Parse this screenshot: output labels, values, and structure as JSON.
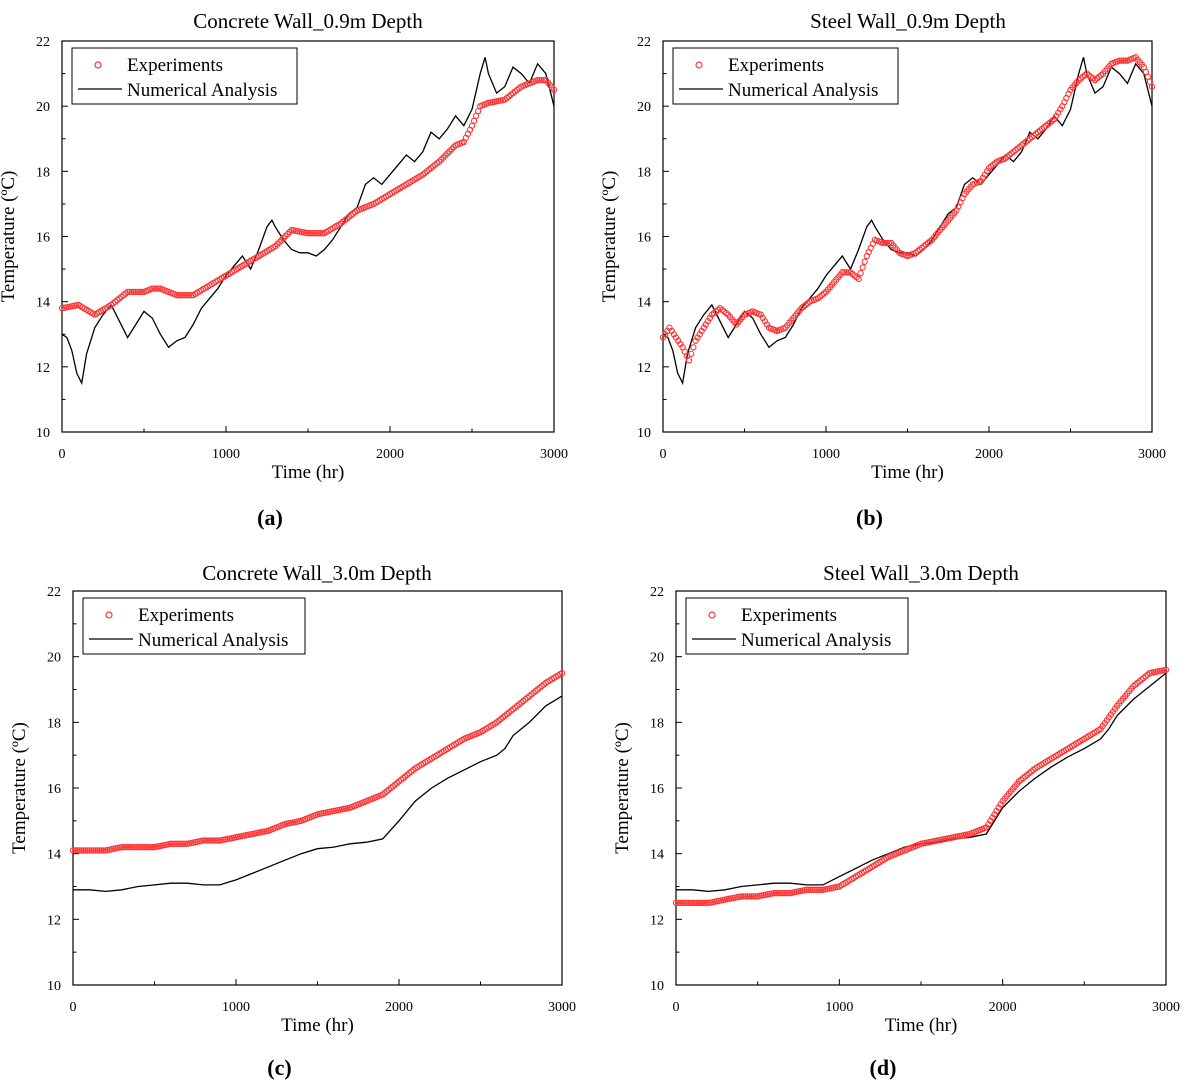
{
  "figure": {
    "panels": [
      {
        "title": "Concrete Wall_0.9m Depth",
        "xlabel": "Time (hr)",
        "ylabel": "Temperature (ºC)",
        "panel_label": "(a)",
        "legend": [
          "Experiments",
          "Numerical Analysis"
        ]
      },
      {
        "title": "Steel Wall_0.9m Depth",
        "xlabel": "Time (hr)",
        "ylabel": "Temperature (ºC)",
        "panel_label": "(b)",
        "legend": [
          "Experiments",
          "Numerical Analysis"
        ]
      },
      {
        "title": "Concrete Wall_3.0m Depth",
        "xlabel": "Time (hr)",
        "ylabel": "Temperature (ºC)",
        "panel_label": "(c)",
        "legend": [
          "Experiments",
          "Numerical Analysis"
        ]
      },
      {
        "title": "Steel Wall_3.0m Depth",
        "xlabel": "Time (hr)",
        "ylabel": "Temperature (ºC)",
        "panel_label": "(d)",
        "legend": [
          "Experiments",
          "Numerical Analysis"
        ]
      }
    ]
  },
  "colors": {
    "experiments": "#ff3333",
    "numerical": "#000000"
  },
  "chart_data": [
    {
      "type": "line",
      "title": "Concrete Wall_0.9m Depth",
      "xlabel": "Time (hr)",
      "ylabel": "Temperature (ºC)",
      "xlim": [
        0,
        3000
      ],
      "ylim": [
        10,
        22
      ],
      "xticks": [
        0,
        1000,
        2000,
        3000
      ],
      "yticks": [
        10,
        12,
        14,
        16,
        18,
        20,
        22
      ],
      "legend_position": "top-left",
      "grid": false,
      "series": [
        {
          "name": "Experiments",
          "marker": "open-circle",
          "x": [
            0,
            100,
            200,
            300,
            400,
            500,
            550,
            600,
            650,
            700,
            800,
            900,
            1000,
            1100,
            1200,
            1300,
            1400,
            1500,
            1600,
            1700,
            1800,
            1900,
            2000,
            2100,
            2200,
            2300,
            2400,
            2450,
            2500,
            2550,
            2600,
            2700,
            2800,
            2900,
            2950,
            3000
          ],
          "y": [
            13.8,
            13.9,
            13.6,
            13.9,
            14.3,
            14.3,
            14.4,
            14.4,
            14.3,
            14.2,
            14.2,
            14.5,
            14.8,
            15.1,
            15.4,
            15.7,
            16.2,
            16.1,
            16.1,
            16.4,
            16.8,
            17.0,
            17.3,
            17.6,
            17.9,
            18.3,
            18.8,
            18.9,
            19.4,
            20.0,
            20.1,
            20.2,
            20.6,
            20.8,
            20.8,
            20.5
          ]
        },
        {
          "name": "Numerical Analysis",
          "marker": "none",
          "x": [
            0,
            30,
            60,
            90,
            120,
            150,
            200,
            250,
            300,
            350,
            400,
            450,
            500,
            550,
            600,
            650,
            700,
            750,
            800,
            850,
            900,
            950,
            1000,
            1050,
            1100,
            1150,
            1200,
            1250,
            1280,
            1300,
            1350,
            1400,
            1450,
            1500,
            1550,
            1600,
            1650,
            1700,
            1750,
            1800,
            1850,
            1900,
            1950,
            2000,
            2050,
            2100,
            2150,
            2200,
            2250,
            2300,
            2350,
            2400,
            2450,
            2500,
            2550,
            2580,
            2600,
            2650,
            2700,
            2750,
            2800,
            2850,
            2900,
            2950,
            3000
          ],
          "y": [
            13.0,
            12.9,
            12.5,
            11.8,
            11.5,
            12.4,
            13.2,
            13.6,
            13.9,
            13.4,
            12.9,
            13.3,
            13.7,
            13.5,
            13.0,
            12.6,
            12.8,
            12.9,
            13.3,
            13.8,
            14.1,
            14.4,
            14.8,
            15.1,
            15.4,
            15.0,
            15.6,
            16.3,
            16.5,
            16.3,
            15.9,
            15.6,
            15.5,
            15.5,
            15.4,
            15.6,
            15.9,
            16.3,
            16.7,
            16.9,
            17.6,
            17.8,
            17.6,
            17.9,
            18.2,
            18.5,
            18.3,
            18.6,
            19.2,
            19.0,
            19.3,
            19.7,
            19.4,
            19.9,
            21.0,
            21.5,
            21.0,
            20.4,
            20.6,
            21.2,
            21.0,
            20.7,
            21.3,
            21.0,
            20.0
          ]
        }
      ]
    },
    {
      "type": "line",
      "title": "Steel Wall_0.9m Depth",
      "xlabel": "Time (hr)",
      "ylabel": "Temperature (ºC)",
      "xlim": [
        0,
        3000
      ],
      "ylim": [
        10,
        22
      ],
      "xticks": [
        0,
        1000,
        2000,
        3000
      ],
      "yticks": [
        10,
        12,
        14,
        16,
        18,
        20,
        22
      ],
      "legend_position": "top-left",
      "grid": false,
      "series": [
        {
          "name": "Experiments",
          "marker": "open-circle",
          "x": [
            0,
            40,
            80,
            120,
            160,
            200,
            250,
            300,
            350,
            400,
            450,
            500,
            550,
            600,
            650,
            700,
            750,
            800,
            850,
            900,
            950,
            1000,
            1050,
            1100,
            1150,
            1200,
            1250,
            1300,
            1350,
            1400,
            1450,
            1500,
            1550,
            1600,
            1650,
            1700,
            1750,
            1800,
            1850,
            1900,
            1950,
            2000,
            2050,
            2100,
            2150,
            2200,
            2250,
            2300,
            2350,
            2400,
            2450,
            2500,
            2550,
            2600,
            2650,
            2700,
            2750,
            2800,
            2850,
            2900,
            2950,
            3000
          ],
          "y": [
            12.9,
            13.2,
            12.9,
            12.6,
            12.2,
            12.8,
            13.2,
            13.6,
            13.8,
            13.6,
            13.3,
            13.6,
            13.7,
            13.6,
            13.2,
            13.1,
            13.2,
            13.5,
            13.8,
            14.0,
            14.1,
            14.3,
            14.6,
            14.9,
            14.9,
            14.7,
            15.4,
            15.9,
            15.8,
            15.8,
            15.5,
            15.4,
            15.5,
            15.7,
            15.9,
            16.2,
            16.5,
            16.8,
            17.3,
            17.6,
            17.7,
            18.1,
            18.3,
            18.4,
            18.6,
            18.8,
            19.0,
            19.2,
            19.4,
            19.6,
            20.0,
            20.5,
            20.8,
            21.0,
            20.8,
            21.0,
            21.3,
            21.4,
            21.4,
            21.5,
            21.2,
            20.6
          ]
        },
        {
          "name": "Numerical Analysis",
          "marker": "none",
          "x": [
            0,
            30,
            60,
            90,
            120,
            150,
            200,
            250,
            300,
            350,
            400,
            450,
            500,
            550,
            600,
            650,
            700,
            750,
            800,
            850,
            900,
            950,
            1000,
            1050,
            1100,
            1150,
            1200,
            1250,
            1280,
            1300,
            1350,
            1400,
            1450,
            1500,
            1550,
            1600,
            1650,
            1700,
            1750,
            1800,
            1850,
            1900,
            1950,
            2000,
            2050,
            2100,
            2150,
            2200,
            2250,
            2300,
            2350,
            2400,
            2450,
            2500,
            2550,
            2580,
            2600,
            2650,
            2700,
            2750,
            2800,
            2850,
            2900,
            2950,
            3000
          ],
          "y": [
            13.0,
            12.9,
            12.5,
            11.8,
            11.5,
            12.4,
            13.2,
            13.6,
            13.9,
            13.4,
            12.9,
            13.3,
            13.7,
            13.5,
            13.0,
            12.6,
            12.8,
            12.9,
            13.3,
            13.8,
            14.1,
            14.4,
            14.8,
            15.1,
            15.4,
            15.0,
            15.6,
            16.3,
            16.5,
            16.3,
            15.9,
            15.6,
            15.5,
            15.5,
            15.4,
            15.6,
            15.9,
            16.3,
            16.7,
            16.9,
            17.6,
            17.8,
            17.6,
            17.9,
            18.2,
            18.5,
            18.3,
            18.6,
            19.2,
            19.0,
            19.3,
            19.7,
            19.4,
            19.9,
            21.0,
            21.5,
            21.0,
            20.4,
            20.6,
            21.2,
            21.0,
            20.7,
            21.3,
            21.0,
            20.0
          ]
        }
      ]
    },
    {
      "type": "line",
      "title": "Concrete Wall_3.0m Depth",
      "xlabel": "Time (hr)",
      "ylabel": "Temperature (ºC)",
      "xlim": [
        0,
        3000
      ],
      "ylim": [
        10,
        22
      ],
      "xticks": [
        0,
        1000,
        2000,
        3000
      ],
      "yticks": [
        10,
        12,
        14,
        16,
        18,
        20,
        22
      ],
      "legend_position": "top-left",
      "grid": false,
      "series": [
        {
          "name": "Experiments",
          "marker": "open-circle",
          "x": [
            0,
            100,
            200,
            300,
            400,
            500,
            600,
            700,
            800,
            900,
            1000,
            1100,
            1200,
            1300,
            1400,
            1500,
            1600,
            1700,
            1800,
            1900,
            2000,
            2100,
            2200,
            2300,
            2400,
            2500,
            2600,
            2700,
            2800,
            2900,
            3000
          ],
          "y": [
            14.1,
            14.1,
            14.1,
            14.2,
            14.2,
            14.2,
            14.3,
            14.3,
            14.4,
            14.4,
            14.5,
            14.6,
            14.7,
            14.9,
            15.0,
            15.2,
            15.3,
            15.4,
            15.6,
            15.8,
            16.2,
            16.6,
            16.9,
            17.2,
            17.5,
            17.7,
            18.0,
            18.4,
            18.8,
            19.2,
            19.5
          ]
        },
        {
          "name": "Numerical Analysis",
          "marker": "none",
          "x": [
            0,
            100,
            200,
            300,
            400,
            500,
            600,
            700,
            800,
            900,
            1000,
            1100,
            1200,
            1300,
            1400,
            1500,
            1600,
            1700,
            1800,
            1900,
            2000,
            2100,
            2200,
            2300,
            2400,
            2500,
            2600,
            2650,
            2700,
            2800,
            2900,
            3000
          ],
          "y": [
            12.9,
            12.9,
            12.85,
            12.9,
            13.0,
            13.05,
            13.1,
            13.1,
            13.05,
            13.05,
            13.2,
            13.4,
            13.6,
            13.8,
            14.0,
            14.15,
            14.2,
            14.3,
            14.35,
            14.45,
            15.0,
            15.6,
            16.0,
            16.3,
            16.55,
            16.8,
            17.0,
            17.2,
            17.6,
            18.0,
            18.5,
            18.8
          ]
        }
      ]
    },
    {
      "type": "line",
      "title": "Steel Wall_3.0m Depth",
      "xlabel": "Time (hr)",
      "ylabel": "Temperature (ºC)",
      "xlim": [
        0,
        3000
      ],
      "ylim": [
        10,
        22
      ],
      "xticks": [
        0,
        1000,
        2000,
        3000
      ],
      "yticks": [
        10,
        12,
        14,
        16,
        18,
        20,
        22
      ],
      "legend_position": "top-left",
      "grid": false,
      "series": [
        {
          "name": "Experiments",
          "marker": "open-circle",
          "x": [
            0,
            100,
            200,
            300,
            400,
            500,
            600,
            700,
            800,
            900,
            1000,
            1100,
            1200,
            1300,
            1400,
            1500,
            1600,
            1700,
            1800,
            1900,
            2000,
            2100,
            2200,
            2300,
            2400,
            2500,
            2600,
            2700,
            2800,
            2900,
            3000
          ],
          "y": [
            12.5,
            12.5,
            12.5,
            12.6,
            12.7,
            12.7,
            12.8,
            12.8,
            12.9,
            12.9,
            13.0,
            13.3,
            13.6,
            13.9,
            14.1,
            14.3,
            14.4,
            14.5,
            14.6,
            14.8,
            15.6,
            16.2,
            16.6,
            16.9,
            17.2,
            17.5,
            17.8,
            18.5,
            19.1,
            19.5,
            19.6
          ]
        },
        {
          "name": "Numerical Analysis",
          "marker": "none",
          "x": [
            0,
            100,
            200,
            300,
            400,
            500,
            600,
            700,
            800,
            900,
            1000,
            1100,
            1200,
            1300,
            1400,
            1500,
            1600,
            1700,
            1800,
            1900,
            2000,
            2100,
            2200,
            2300,
            2400,
            2500,
            2600,
            2650,
            2700,
            2800,
            2900,
            3000
          ],
          "y": [
            12.9,
            12.9,
            12.85,
            12.9,
            13.0,
            13.05,
            13.1,
            13.1,
            13.05,
            13.05,
            13.3,
            13.55,
            13.8,
            14.0,
            14.2,
            14.3,
            14.35,
            14.45,
            14.5,
            14.6,
            15.4,
            15.9,
            16.3,
            16.65,
            16.95,
            17.2,
            17.5,
            17.8,
            18.2,
            18.7,
            19.1,
            19.5
          ]
        }
      ]
    }
  ]
}
